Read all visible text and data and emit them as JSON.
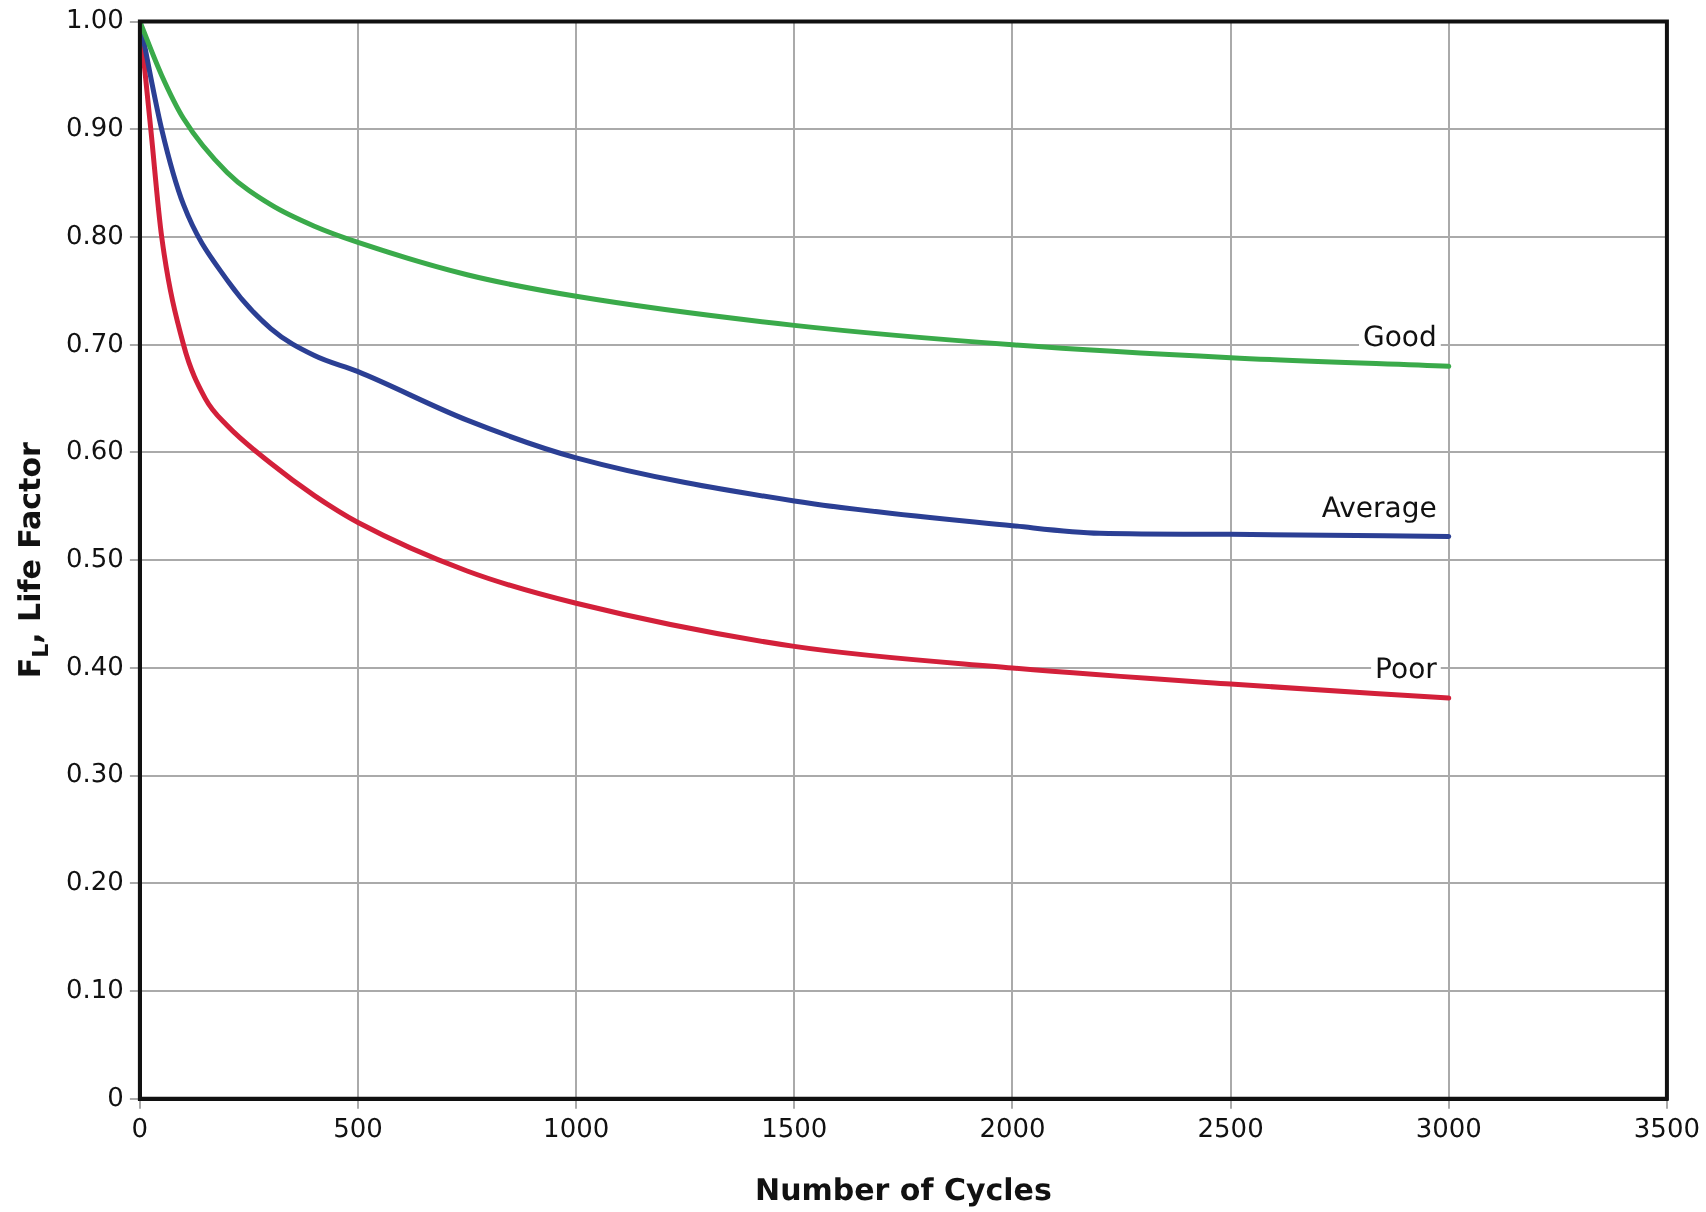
{
  "chart_data": {
    "type": "line",
    "xlabel": "Number of Cycles",
    "ylabel": "F$_{L}$, Life Factor",
    "xlim": [
      0,
      3500
    ],
    "xticks": [
      0,
      500,
      1000,
      1500,
      2000,
      2500,
      3000,
      3500
    ],
    "ylim": [
      0,
      1
    ],
    "yticks": [
      {
        "value": 0,
        "label": "0"
      },
      {
        "value": 0.1,
        "label": "0.10"
      },
      {
        "value": 0.2,
        "label": "0.20"
      },
      {
        "value": 0.3,
        "label": "0.30"
      },
      {
        "value": 0.4,
        "label": "0.40"
      },
      {
        "value": 0.5,
        "label": "0.50"
      },
      {
        "value": 0.6,
        "label": "0.60"
      },
      {
        "value": 0.7,
        "label": "0.70"
      },
      {
        "value": 0.8,
        "label": "0.80"
      },
      {
        "value": 0.9,
        "label": "0.90"
      },
      {
        "value": 1,
        "label": "1.00"
      }
    ],
    "grid": true,
    "legend": false,
    "marker": "none",
    "line_style": "solid",
    "series": [
      {
        "name": "Good",
        "color": "#3aaa4a",
        "x": [
          0,
          50,
          100,
          200,
          300,
          400,
          500,
          750,
          1000,
          1500,
          2000,
          2500,
          3000
        ],
        "values": [
          1.0,
          0.95,
          0.91,
          0.86,
          0.83,
          0.81,
          0.795,
          0.765,
          0.745,
          0.718,
          0.7,
          0.688,
          0.68
        ]
      },
      {
        "name": "Average",
        "color": "#2b3f94",
        "x": [
          0,
          50,
          100,
          200,
          300,
          400,
          500,
          750,
          1000,
          1500,
          2000,
          2200,
          2500,
          3000
        ],
        "values": [
          1.0,
          0.9,
          0.83,
          0.76,
          0.715,
          0.69,
          0.675,
          0.63,
          0.595,
          0.555,
          0.532,
          0.525,
          0.524,
          0.522
        ]
      },
      {
        "name": "Poor",
        "color": "#d3203a",
        "x": [
          0,
          25,
          50,
          100,
          150,
          200,
          300,
          400,
          500,
          750,
          1000,
          1500,
          2000,
          2500,
          3000
        ],
        "values": [
          1.0,
          0.9,
          0.8,
          0.7,
          0.65,
          0.625,
          0.59,
          0.56,
          0.535,
          0.49,
          0.46,
          0.42,
          0.4,
          0.385,
          0.372
        ]
      }
    ]
  }
}
